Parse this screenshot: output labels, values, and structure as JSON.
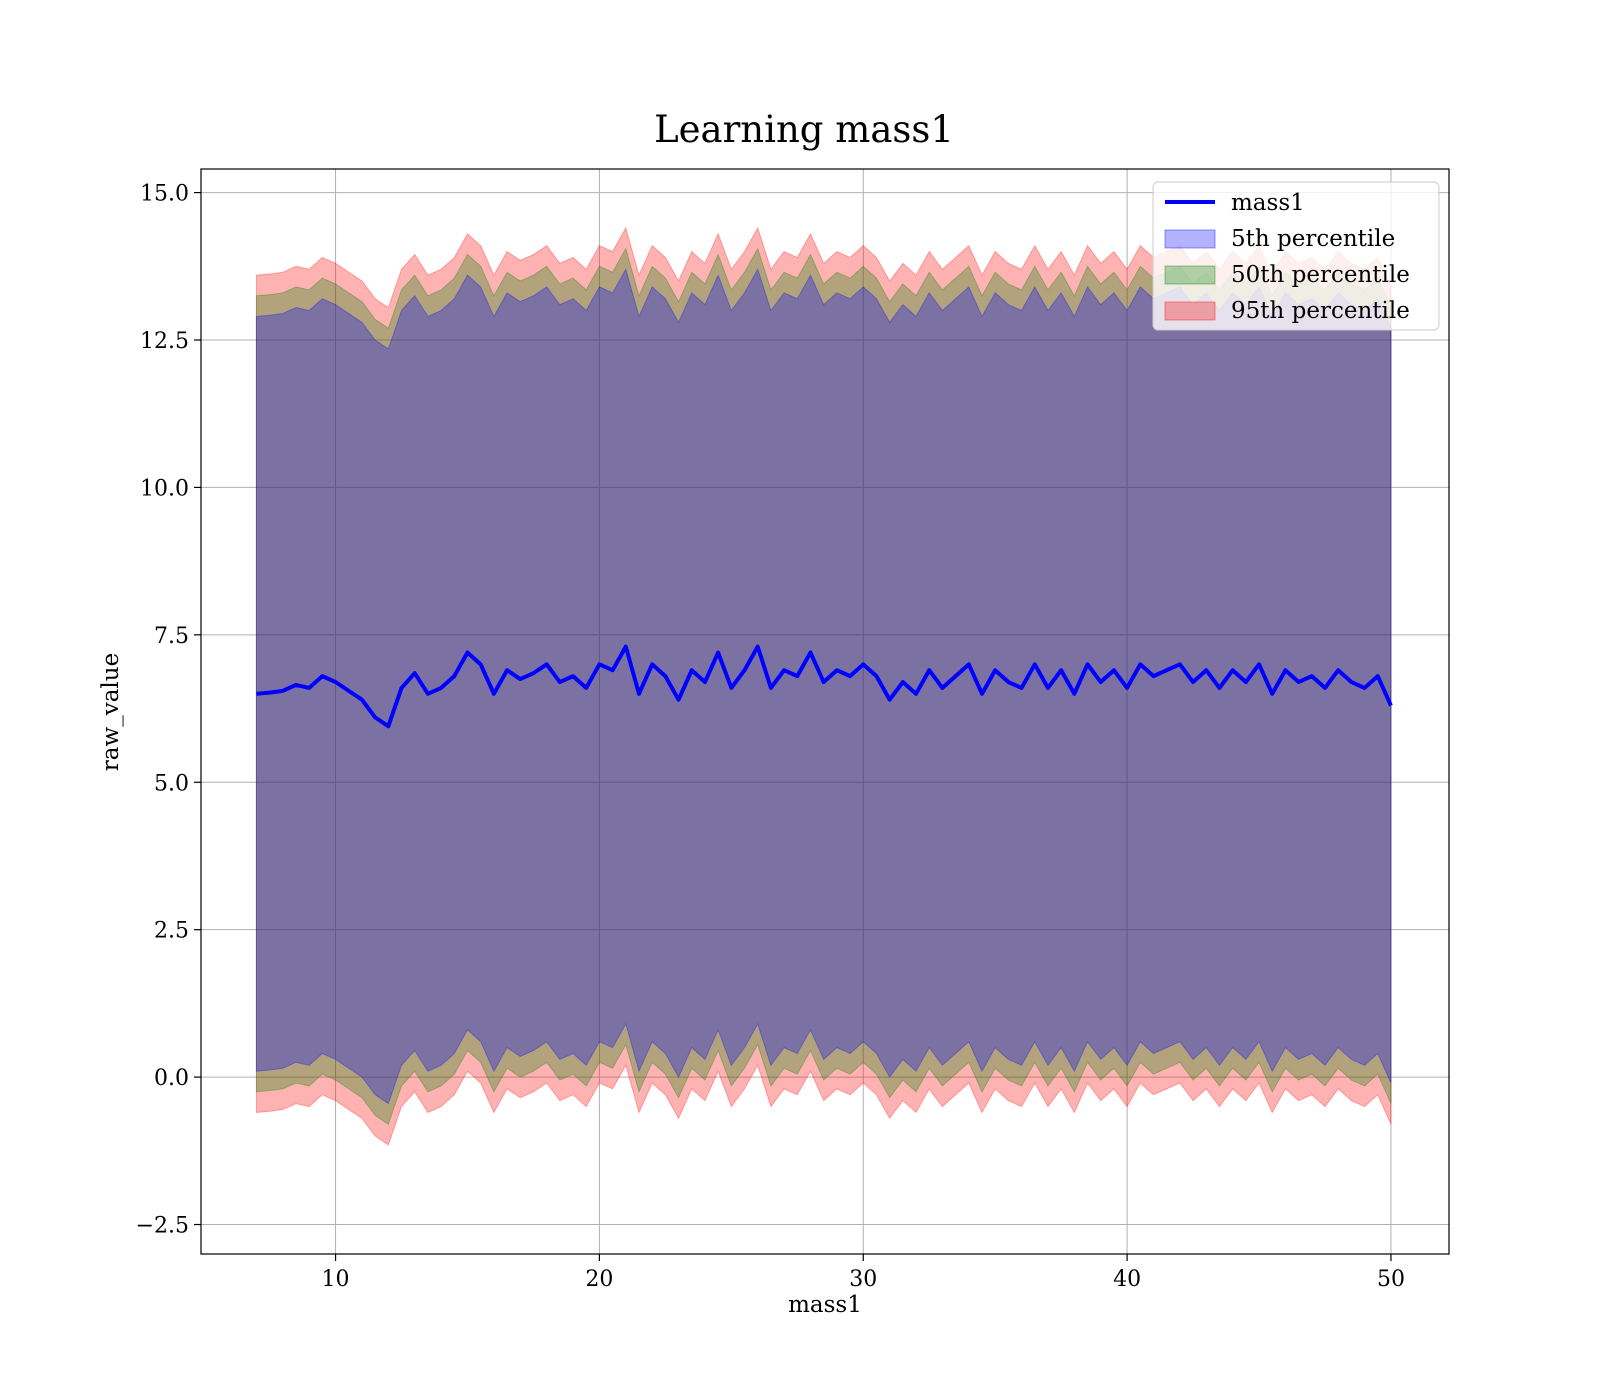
{
  "chart_data": {
    "type": "area",
    "title": "Learning mass1",
    "xlabel": "mass1",
    "ylabel": "raw_value",
    "xlim": [
      4.9,
      52.2
    ],
    "ylim": [
      -3.0,
      15.4
    ],
    "x_ticks": [
      10,
      20,
      30,
      40,
      50
    ],
    "x_tick_labels": [
      "10",
      "20",
      "30",
      "40",
      "50"
    ],
    "y_ticks": [
      -2.5,
      0.0,
      2.5,
      5.0,
      7.5,
      10.0,
      12.5,
      15.0
    ],
    "y_tick_labels": [
      "−2.5",
      "0.0",
      "2.5",
      "5.0",
      "7.5",
      "10.0",
      "12.5",
      "15.0"
    ],
    "grid": true,
    "legend_position": "top-right",
    "legend": [
      {
        "label": "mass1",
        "kind": "line",
        "color": "#0000ff"
      },
      {
        "label": "5th percentile",
        "kind": "patch",
        "color": "#0000ff"
      },
      {
        "label": "50th percentile",
        "kind": "patch",
        "color": "#008000"
      },
      {
        "label": "95th percentile",
        "kind": "patch",
        "color": "#ff0000"
      }
    ],
    "series": [
      {
        "name": "mass1",
        "kind": "line",
        "color": "#0000ff",
        "x": [
          7,
          7.5,
          8,
          8.5,
          9,
          9.5,
          10,
          10.5,
          11,
          11.5,
          12,
          12.5,
          13,
          13.5,
          14,
          14.5,
          15,
          15.5,
          16,
          16.5,
          17,
          17.5,
          18,
          18.5,
          19,
          19.5,
          20,
          20.5,
          21,
          21.5,
          22,
          22.5,
          23,
          23.5,
          24,
          24.5,
          25,
          25.5,
          26,
          26.5,
          27,
          27.5,
          28,
          28.5,
          29,
          29.5,
          30,
          30.5,
          31,
          31.5,
          32,
          32.5,
          33,
          33.5,
          34,
          34.5,
          35,
          35.5,
          36,
          36.5,
          37,
          37.5,
          38,
          38.5,
          39,
          39.5,
          40,
          40.5,
          41,
          41.5,
          42,
          42.5,
          43,
          43.5,
          44,
          44.5,
          45,
          45.5,
          46,
          46.5,
          47,
          47.5,
          48,
          48.5,
          49,
          49.5,
          50
        ],
        "y": [
          6.5,
          6.52,
          6.55,
          6.65,
          6.6,
          6.8,
          6.7,
          6.55,
          6.4,
          6.1,
          5.95,
          6.6,
          6.85,
          6.5,
          6.6,
          6.8,
          7.2,
          7.0,
          6.5,
          6.9,
          6.75,
          6.85,
          7.0,
          6.7,
          6.8,
          6.6,
          7.0,
          6.9,
          7.3,
          6.5,
          7.0,
          6.8,
          6.4,
          6.9,
          6.7,
          7.2,
          6.6,
          6.9,
          7.3,
          6.6,
          6.9,
          6.8,
          7.2,
          6.7,
          6.9,
          6.8,
          7.0,
          6.8,
          6.4,
          6.7,
          6.5,
          6.9,
          6.6,
          6.8,
          7.0,
          6.5,
          6.9,
          6.7,
          6.6,
          7.0,
          6.6,
          6.9,
          6.5,
          7.0,
          6.7,
          6.9,
          6.6,
          7.0,
          6.8,
          6.9,
          7.0,
          6.7,
          6.9,
          6.6,
          6.9,
          6.7,
          7.0,
          6.5,
          6.9,
          6.7,
          6.8,
          6.6,
          6.9,
          6.7,
          6.6,
          6.8,
          6.3
        ]
      },
      {
        "name": "5th percentile",
        "kind": "band",
        "color": "#0000ff",
        "upper_offset": 6.4,
        "lower_offset": 6.4
      },
      {
        "name": "50th percentile",
        "kind": "band",
        "color": "#008000",
        "upper_offset": 6.75,
        "lower_offset": 6.75
      },
      {
        "name": "95th percentile",
        "kind": "band",
        "color": "#ff0000",
        "upper_offset": 7.1,
        "lower_offset": 7.1
      }
    ]
  }
}
